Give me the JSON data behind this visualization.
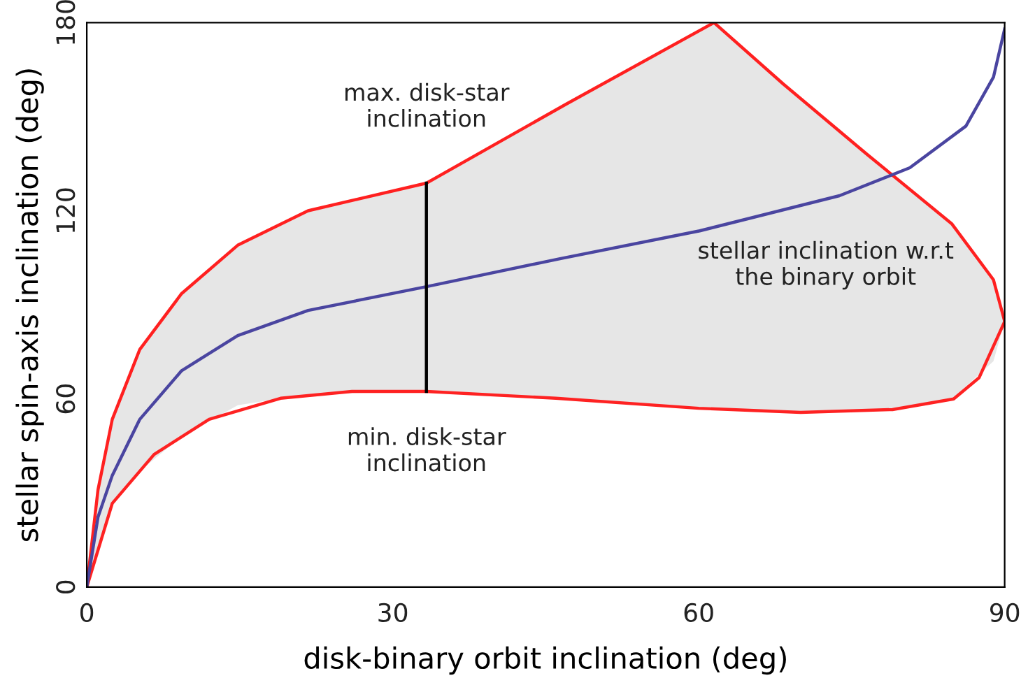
{
  "chart_data": {
    "type": "line",
    "xlabel": "disk-binary orbit inclination (deg)",
    "ylabel": "stellar spin-axis inclination (deg)",
    "xlim": [
      0,
      90
    ],
    "ylim": [
      0,
      180
    ],
    "xticks": [
      0,
      30,
      60,
      90
    ],
    "yticks": [
      0,
      60,
      120,
      180
    ],
    "marker": "none",
    "line_style": "solid",
    "series": [
      {
        "color": "#ff2020",
        "x": [
          0,
          1.1,
          2.5,
          5.2,
          9.3,
          14.8,
          21.7,
          33.3,
          47,
          61.5,
          68.3,
          76.5,
          84.8,
          88.9,
          90
        ],
        "values": [
          0,
          31,
          53.5,
          75.8,
          93.6,
          109,
          120,
          128.8,
          154,
          180,
          160.4,
          138,
          115.9,
          98,
          84.7
        ],
        "lower": [
          0,
          12,
          26.7,
          37,
          48,
          58,
          61.5,
          62.4,
          60,
          56.9,
          55.8,
          55.9,
          59.8,
          72,
          84.7
        ],
        "upper": [
          0,
          31,
          53.5,
          75.8,
          93.6,
          109,
          120,
          128.8,
          154,
          180,
          160.4,
          138,
          115.9,
          98,
          84.7
        ]
      },
      {
        "color": "#fe2222",
        "x": [
          0,
          2.5,
          6.6,
          12,
          19,
          26,
          33.3,
          46,
          60,
          70,
          79,
          85,
          87.5,
          90
        ],
        "values": [
          0,
          26.7,
          42.3,
          53.5,
          60.2,
          62.4,
          62.4,
          60.2,
          57,
          55.7,
          56.6,
          60,
          66.8,
          84.7
        ]
      },
      {
        "color": "#4a45a0",
        "x": [
          0,
          1.1,
          2.5,
          5.2,
          9.3,
          14.8,
          21.7,
          33.3,
          46.4,
          60.1,
          73.8,
          80.7,
          86.2,
          88.9,
          90
        ],
        "values": [
          0,
          22.3,
          35.6,
          53.5,
          69,
          80.2,
          88.2,
          95.8,
          104.7,
          113.6,
          124.8,
          133.7,
          147,
          162.6,
          178
        ]
      },
      {
        "color": "#000000",
        "x": [
          33.3,
          33.3
        ],
        "values": [
          62.4,
          128.8
        ]
      }
    ],
    "annotations": [
      "max. disk-star\ninclination",
      "stellar inclination w.r.t\nthe binary orbit",
      "min. disk-star\ninclination"
    ]
  }
}
